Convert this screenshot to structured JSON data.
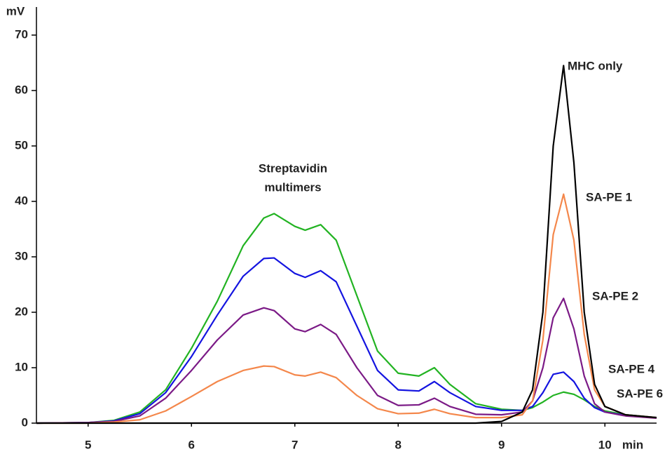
{
  "chart_data": {
    "type": "line",
    "y_label": "mV",
    "x_label": "min",
    "annotations": [
      "Streptavidin",
      "multimers"
    ],
    "xlim": [
      4.5,
      10.5
    ],
    "ylim": [
      0,
      75
    ],
    "xticks": [
      5,
      6,
      7,
      8,
      9,
      10
    ],
    "yticks": [
      0,
      10,
      20,
      30,
      40,
      50,
      60,
      70
    ],
    "x": [
      4.5,
      5.0,
      5.25,
      5.5,
      5.75,
      6.0,
      6.25,
      6.5,
      6.7,
      6.8,
      7.0,
      7.1,
      7.25,
      7.4,
      7.6,
      7.8,
      8.0,
      8.2,
      8.35,
      8.5,
      8.75,
      9.0,
      9.2,
      9.3,
      9.4,
      9.5,
      9.6,
      9.7,
      9.8,
      9.9,
      10.0,
      10.2,
      10.5
    ],
    "series": [
      {
        "name": "SA-PE 6",
        "color": "#22b322",
        "values": [
          0,
          0.1,
          0.5,
          2,
          6,
          13.5,
          22,
          32,
          37,
          37.8,
          35.5,
          34.8,
          35.8,
          33,
          23,
          13,
          9,
          8.5,
          10,
          7,
          3.5,
          2.5,
          2.3,
          2.8,
          3.8,
          5,
          5.6,
          5.2,
          4.2,
          3,
          2.2,
          1.5,
          1.0
        ]
      },
      {
        "name": "SA-PE 4",
        "color": "#1414e0",
        "values": [
          0,
          0.1,
          0.4,
          1.7,
          5.5,
          12,
          19.5,
          26.5,
          29.7,
          29.8,
          27,
          26.3,
          27.5,
          25.5,
          17.5,
          9.5,
          6,
          5.8,
          7.5,
          5.5,
          3,
          2.3,
          2.3,
          3,
          5.5,
          8.8,
          9.2,
          7.5,
          4.5,
          2.8,
          2.0,
          1.4,
          1.0
        ]
      },
      {
        "name": "SA-PE 2",
        "color": "#7b1a86",
        "values": [
          0,
          0.1,
          0.3,
          1.3,
          4.5,
          9.5,
          15,
          19.5,
          20.8,
          20.3,
          17,
          16.5,
          17.8,
          16,
          10,
          5,
          3.2,
          3.3,
          4.5,
          3,
          1.6,
          1.5,
          2,
          4,
          10,
          19,
          22.5,
          17,
          8.5,
          3.5,
          2.0,
          1.3,
          0.9
        ]
      },
      {
        "name": "SA-PE 1",
        "color": "#f4874b",
        "values": [
          0,
          0,
          0.2,
          0.6,
          2.2,
          4.8,
          7.5,
          9.5,
          10.3,
          10.2,
          8.7,
          8.5,
          9.2,
          8.2,
          5,
          2.6,
          1.7,
          1.8,
          2.5,
          1.7,
          1.0,
          1.0,
          1.5,
          4,
          15,
          34,
          41.3,
          33,
          16,
          6,
          3,
          1.5,
          1.0
        ]
      },
      {
        "name": "MHC only",
        "color": "#000000",
        "values": [
          0,
          0,
          0,
          0,
          0,
          0,
          0,
          0,
          0,
          0,
          0,
          0,
          0,
          0,
          0,
          0,
          0,
          0,
          0,
          0,
          0,
          0.3,
          2,
          6,
          20,
          50,
          64.5,
          47,
          20,
          7,
          3,
          1.5,
          1.0
        ]
      }
    ]
  }
}
